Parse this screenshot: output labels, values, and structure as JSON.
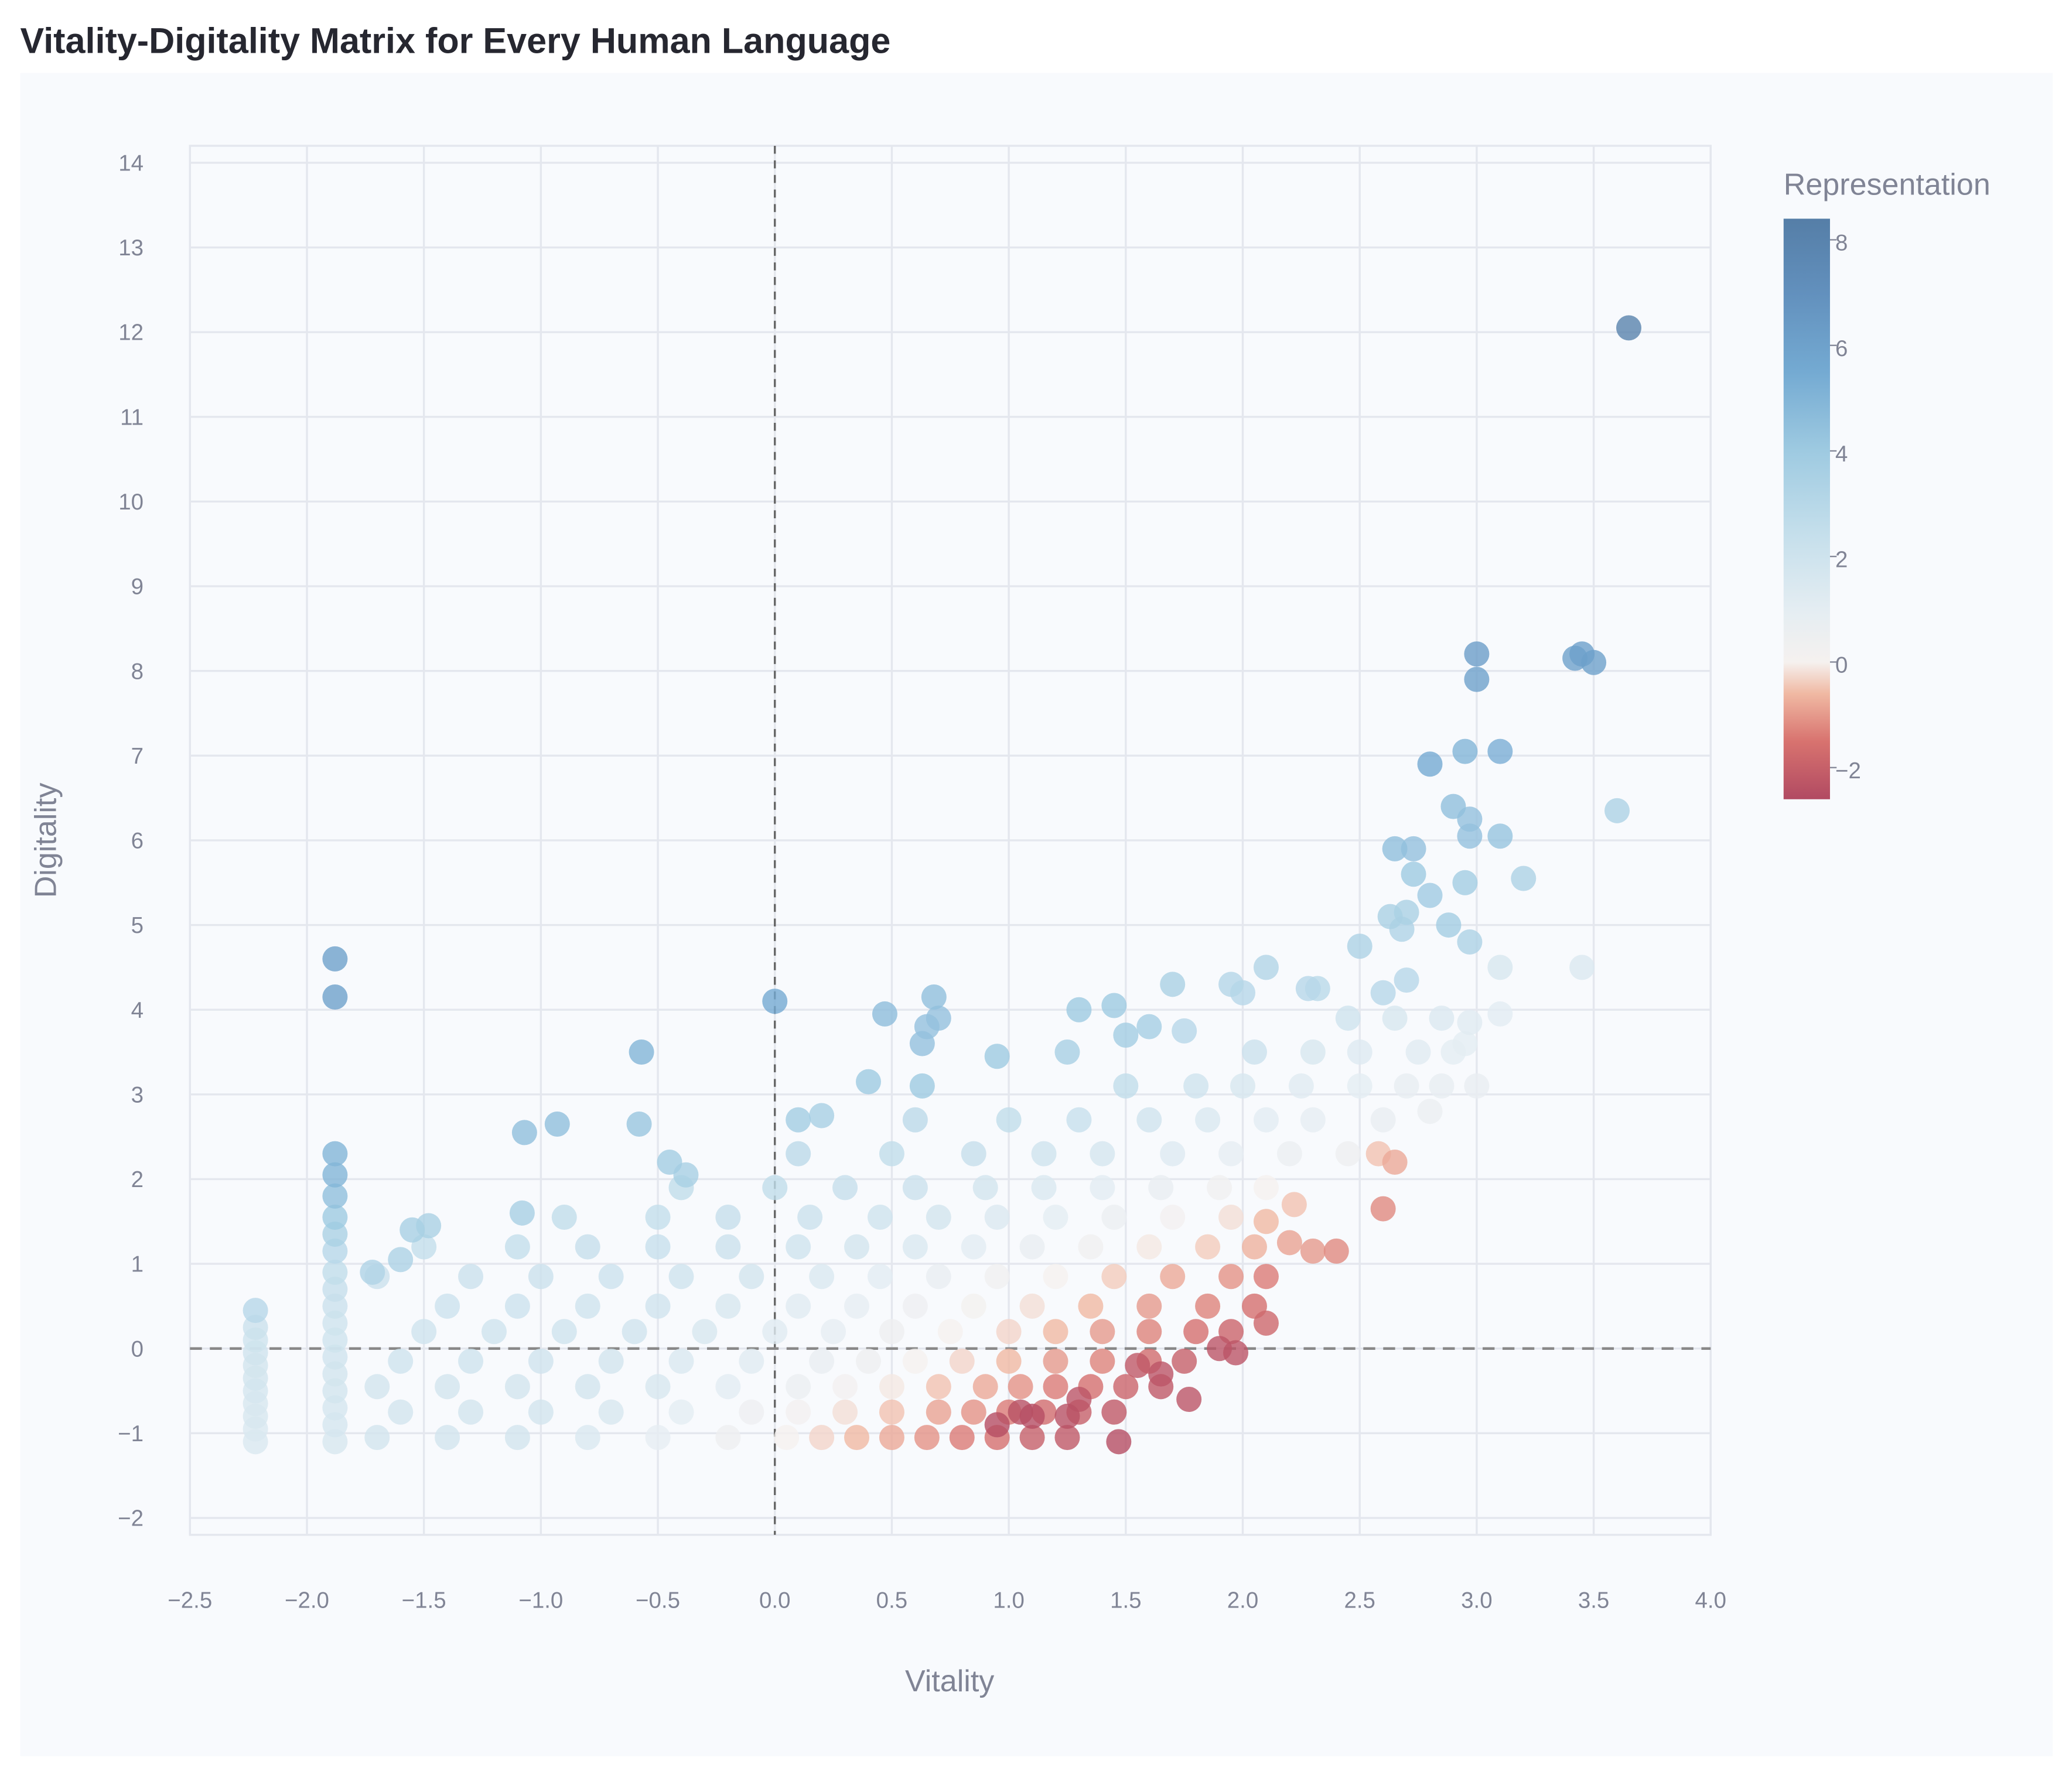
{
  "chart_data": {
    "type": "scatter",
    "title": "Vitality-Digitality Matrix for Every Human Language",
    "xlabel": "Vitality",
    "ylabel": "Digitality",
    "xlim": [
      -2.5,
      4.0
    ],
    "ylim": [
      -2.2,
      14.2
    ],
    "x_ticks": [
      "−2.5",
      "−2.0",
      "−1.5",
      "−1.0",
      "−0.5",
      "0.0",
      "0.5",
      "1.0",
      "1.5",
      "2.0",
      "2.5",
      "3.0",
      "3.5",
      "4.0"
    ],
    "x_tick_values": [
      -2.5,
      -2.0,
      -1.5,
      -1.0,
      -0.5,
      0.0,
      0.5,
      1.0,
      1.5,
      2.0,
      2.5,
      3.0,
      3.5,
      4.0
    ],
    "y_ticks": [
      "−2",
      "−1",
      "0",
      "1",
      "2",
      "3",
      "4",
      "5",
      "6",
      "7",
      "8",
      "9",
      "10",
      "11",
      "12",
      "13",
      "14"
    ],
    "y_tick_values": [
      -2,
      -1,
      0,
      1,
      2,
      3,
      4,
      5,
      6,
      7,
      8,
      9,
      10,
      11,
      12,
      13,
      14
    ],
    "grid": true,
    "reference_lines": {
      "x": 0,
      "y": 0,
      "style": "dashed"
    },
    "color_field": "Representation",
    "colorbar": {
      "title": "Representation",
      "range": [
        -2.6,
        8.4
      ],
      "ticks": [
        "8",
        "6",
        "4",
        "2",
        "0",
        "−2"
      ],
      "tick_values": [
        8,
        6,
        4,
        2,
        0,
        -2
      ],
      "placement": "right",
      "stops": [
        {
          "v": -2.6,
          "c": "#b14a62"
        },
        {
          "v": -1.5,
          "c": "#d8736f"
        },
        {
          "v": -0.6,
          "c": "#f0b9a3"
        },
        {
          "v": 0.0,
          "c": "#f5f1ef"
        },
        {
          "v": 1.0,
          "c": "#e4edf2"
        },
        {
          "v": 2.5,
          "c": "#c3deeb"
        },
        {
          "v": 4.0,
          "c": "#9ecae1"
        },
        {
          "v": 5.5,
          "c": "#74aad2"
        },
        {
          "v": 7.0,
          "c": "#6290bd"
        },
        {
          "v": 8.4,
          "c": "#557ea7"
        }
      ]
    },
    "points_format": [
      "vitality",
      "digitality",
      "representation"
    ],
    "points": [
      [
        3.65,
        12.05,
        8.0
      ],
      [
        3.0,
        8.2,
        6.2
      ],
      [
        3.0,
        7.9,
        6.0
      ],
      [
        3.42,
        8.15,
        6.0
      ],
      [
        3.45,
        8.2,
        6.1
      ],
      [
        3.5,
        8.1,
        6.0
      ],
      [
        2.8,
        6.9,
        5.5
      ],
      [
        2.95,
        7.05,
        5.0
      ],
      [
        3.1,
        7.05,
        5.3
      ],
      [
        2.9,
        6.4,
        4.5
      ],
      [
        2.97,
        6.25,
        4.4
      ],
      [
        2.97,
        6.05,
        4.4
      ],
      [
        3.1,
        6.05,
        4.3
      ],
      [
        3.6,
        6.35,
        3.4
      ],
      [
        3.2,
        5.55,
        3.4
      ],
      [
        2.65,
        5.9,
        4.5
      ],
      [
        2.73,
        5.9,
        4.4
      ],
      [
        2.73,
        5.6,
        4.0
      ],
      [
        2.8,
        5.35,
        3.9
      ],
      [
        2.88,
        5.0,
        3.8
      ],
      [
        2.95,
        5.5,
        3.8
      ],
      [
        2.97,
        4.8,
        3.4
      ],
      [
        2.63,
        5.1,
        3.5
      ],
      [
        2.7,
        5.15,
        3.5
      ],
      [
        2.68,
        4.95,
        3.3
      ],
      [
        2.5,
        4.75,
        3.4
      ],
      [
        2.6,
        4.2,
        3.0
      ],
      [
        2.7,
        4.35,
        3.0
      ],
      [
        2.1,
        4.5,
        3.2
      ],
      [
        1.95,
        4.3,
        3.1
      ],
      [
        2.0,
        4.2,
        3.0
      ],
      [
        2.28,
        4.25,
        3.0
      ],
      [
        2.32,
        4.25,
        2.9
      ],
      [
        1.7,
        4.3,
        3.5
      ],
      [
        1.75,
        3.75,
        3.0
      ],
      [
        3.1,
        4.5,
        1.6
      ],
      [
        3.45,
        4.5,
        1.4
      ],
      [
        3.1,
        3.95,
        1.1
      ],
      [
        2.97,
        3.85,
        1.2
      ],
      [
        2.95,
        3.6,
        1.0
      ],
      [
        2.8,
        2.8,
        0.6
      ],
      [
        -1.88,
        4.6,
        6.0
      ],
      [
        -1.88,
        4.15,
        6.0
      ],
      [
        0.0,
        4.1,
        5.5
      ],
      [
        -0.57,
        3.5,
        5.0
      ],
      [
        0.47,
        3.95,
        4.6
      ],
      [
        0.68,
        4.15,
        4.5
      ],
      [
        0.65,
        3.8,
        4.4
      ],
      [
        0.7,
        3.9,
        4.4
      ],
      [
        0.63,
        3.6,
        4.4
      ],
      [
        1.3,
        4.0,
        4.0
      ],
      [
        1.45,
        4.05,
        4.0
      ],
      [
        1.5,
        3.7,
        3.8
      ],
      [
        1.6,
        3.8,
        3.7
      ],
      [
        0.95,
        3.45,
        4.0
      ],
      [
        0.4,
        3.15,
        4.0
      ],
      [
        0.63,
        3.1,
        4.0
      ],
      [
        1.25,
        3.5,
        3.6
      ],
      [
        -0.58,
        2.65,
        4.2
      ],
      [
        -0.93,
        2.65,
        4.5
      ],
      [
        -1.07,
        2.55,
        4.5
      ],
      [
        0.1,
        2.7,
        3.8
      ],
      [
        0.2,
        2.75,
        3.6
      ],
      [
        -0.45,
        2.2,
        3.8
      ],
      [
        -0.38,
        2.05,
        3.6
      ],
      [
        -1.08,
        1.6,
        3.6
      ],
      [
        -1.55,
        1.4,
        3.6
      ],
      [
        -1.48,
        1.45,
        3.5
      ],
      [
        -1.6,
        1.05,
        3.4
      ],
      [
        -1.72,
        0.9,
        3.3
      ],
      [
        -1.88,
        2.3,
        5.0
      ],
      [
        -1.88,
        2.05,
        5.0
      ],
      [
        -1.88,
        1.8,
        4.5
      ],
      [
        -1.88,
        1.55,
        4.0
      ],
      [
        -1.88,
        1.35,
        3.5
      ],
      [
        -1.88,
        1.15,
        3.0
      ],
      [
        -1.88,
        0.9,
        2.6
      ],
      [
        -1.88,
        0.7,
        2.4
      ],
      [
        -1.88,
        0.5,
        2.2
      ],
      [
        -1.88,
        0.3,
        2.0
      ],
      [
        -1.88,
        0.1,
        2.0
      ],
      [
        -1.88,
        -0.1,
        1.9
      ],
      [
        -1.88,
        -0.3,
        1.8
      ],
      [
        -1.88,
        -0.5,
        1.8
      ],
      [
        -1.88,
        -0.7,
        1.7
      ],
      [
        -1.88,
        -0.9,
        1.7
      ],
      [
        -1.88,
        -1.1,
        1.6
      ],
      [
        -2.22,
        0.45,
        3.0
      ],
      [
        -2.22,
        0.25,
        2.2
      ],
      [
        -2.22,
        0.1,
        2.0
      ],
      [
        -2.22,
        -0.05,
        1.9
      ],
      [
        -2.22,
        -0.2,
        1.8
      ],
      [
        -2.22,
        -0.35,
        1.8
      ],
      [
        -2.22,
        -0.5,
        1.7
      ],
      [
        -2.22,
        -0.65,
        1.6
      ],
      [
        -2.22,
        -0.8,
        1.6
      ],
      [
        -2.22,
        -0.95,
        1.5
      ],
      [
        -2.22,
        -1.1,
        1.5
      ],
      [
        1.47,
        -1.1,
        -2.5
      ],
      [
        1.77,
        -0.6,
        -2.3
      ],
      [
        1.97,
        -0.05,
        -2.3
      ],
      [
        1.9,
        0.0,
        -2.3
      ],
      [
        2.1,
        0.3,
        -1.8
      ],
      [
        2.4,
        1.15,
        -1.2
      ],
      [
        2.3,
        1.15,
        -1.0
      ],
      [
        2.6,
        1.65,
        -1.2
      ],
      [
        2.65,
        2.2,
        -0.8
      ],
      [
        2.58,
        2.3,
        -0.5
      ],
      [
        2.22,
        1.7,
        -0.5
      ],
      [
        2.1,
        1.5,
        -0.6
      ],
      [
        2.2,
        1.25,
        -0.9
      ],
      [
        1.3,
        -0.6,
        -2.3
      ],
      [
        1.1,
        -0.8,
        -2.5
      ],
      [
        0.95,
        -0.9,
        -2.5
      ],
      [
        1.25,
        -0.8,
        -2.4
      ],
      [
        1.05,
        -0.75,
        -2.4
      ],
      [
        1.65,
        -0.3,
        -2.3
      ],
      [
        1.55,
        -0.2,
        -2.2
      ],
      [
        -1.7,
        -1.05,
        1.8
      ],
      [
        -1.4,
        -1.05,
        1.8
      ],
      [
        -1.1,
        -1.05,
        1.8
      ],
      [
        -0.8,
        -1.05,
        1.5
      ],
      [
        -0.5,
        -1.05,
        0.9
      ],
      [
        -0.2,
        -1.05,
        0.4
      ],
      [
        0.05,
        -1.05,
        0.0
      ],
      [
        0.2,
        -1.05,
        -0.3
      ],
      [
        0.35,
        -1.05,
        -0.6
      ],
      [
        0.5,
        -1.05,
        -0.8
      ],
      [
        0.65,
        -1.05,
        -1.1
      ],
      [
        0.8,
        -1.05,
        -1.4
      ],
      [
        0.95,
        -1.05,
        -1.6
      ],
      [
        1.1,
        -1.05,
        -2.0
      ],
      [
        1.25,
        -1.05,
        -2.2
      ],
      [
        -1.6,
        -0.75,
        1.8
      ],
      [
        -1.3,
        -0.75,
        1.8
      ],
      [
        -1.0,
        -0.75,
        1.8
      ],
      [
        -0.7,
        -0.75,
        1.6
      ],
      [
        -0.4,
        -0.75,
        1.0
      ],
      [
        -0.1,
        -0.75,
        0.5
      ],
      [
        0.1,
        -0.75,
        0.2
      ],
      [
        0.3,
        -0.75,
        -0.2
      ],
      [
        0.5,
        -0.75,
        -0.5
      ],
      [
        0.7,
        -0.75,
        -0.9
      ],
      [
        0.85,
        -0.75,
        -1.1
      ],
      [
        1.0,
        -0.75,
        -1.4
      ],
      [
        1.15,
        -0.75,
        -1.7
      ],
      [
        1.3,
        -0.75,
        -2.0
      ],
      [
        1.45,
        -0.75,
        -2.2
      ],
      [
        -1.7,
        -0.45,
        1.8
      ],
      [
        -1.4,
        -0.45,
        1.8
      ],
      [
        -1.1,
        -0.45,
        1.8
      ],
      [
        -0.8,
        -0.45,
        1.8
      ],
      [
        -0.5,
        -0.45,
        1.6
      ],
      [
        -0.2,
        -0.45,
        1.1
      ],
      [
        0.1,
        -0.45,
        0.6
      ],
      [
        0.3,
        -0.45,
        0.2
      ],
      [
        0.5,
        -0.45,
        -0.1
      ],
      [
        0.7,
        -0.45,
        -0.5
      ],
      [
        0.9,
        -0.45,
        -0.8
      ],
      [
        1.05,
        -0.45,
        -1.1
      ],
      [
        1.2,
        -0.45,
        -1.4
      ],
      [
        1.35,
        -0.45,
        -1.6
      ],
      [
        1.5,
        -0.45,
        -1.9
      ],
      [
        1.65,
        -0.45,
        -2.2
      ],
      [
        -1.6,
        -0.15,
        2.0
      ],
      [
        -1.3,
        -0.15,
        2.0
      ],
      [
        -1.0,
        -0.15,
        1.9
      ],
      [
        -0.7,
        -0.15,
        1.8
      ],
      [
        -0.4,
        -0.15,
        1.5
      ],
      [
        -0.1,
        -0.15,
        1.2
      ],
      [
        0.2,
        -0.15,
        0.7
      ],
      [
        0.4,
        -0.15,
        0.4
      ],
      [
        0.6,
        -0.15,
        0.0
      ],
      [
        0.8,
        -0.15,
        -0.3
      ],
      [
        1.0,
        -0.15,
        -0.6
      ],
      [
        1.2,
        -0.15,
        -1.0
      ],
      [
        1.4,
        -0.15,
        -1.3
      ],
      [
        1.6,
        -0.15,
        -1.7
      ],
      [
        1.75,
        -0.15,
        -2.0
      ],
      [
        -1.5,
        0.2,
        2.0
      ],
      [
        -1.2,
        0.2,
        2.0
      ],
      [
        -0.9,
        0.2,
        2.0
      ],
      [
        -0.6,
        0.2,
        1.9
      ],
      [
        -0.3,
        0.2,
        1.6
      ],
      [
        0.0,
        0.2,
        1.2
      ],
      [
        0.25,
        0.2,
        0.9
      ],
      [
        0.5,
        0.2,
        0.4
      ],
      [
        0.75,
        0.2,
        0.0
      ],
      [
        1.0,
        0.2,
        -0.3
      ],
      [
        1.2,
        0.2,
        -0.6
      ],
      [
        1.4,
        0.2,
        -1.0
      ],
      [
        1.6,
        0.2,
        -1.3
      ],
      [
        1.8,
        0.2,
        -1.6
      ],
      [
        1.95,
        0.2,
        -1.9
      ],
      [
        -1.4,
        0.5,
        2.1
      ],
      [
        -1.1,
        0.5,
        2.1
      ],
      [
        -0.8,
        0.5,
        2.0
      ],
      [
        -0.5,
        0.5,
        1.9
      ],
      [
        -0.2,
        0.5,
        1.6
      ],
      [
        0.1,
        0.5,
        1.2
      ],
      [
        0.35,
        0.5,
        0.9
      ],
      [
        0.6,
        0.5,
        0.5
      ],
      [
        0.85,
        0.5,
        0.1
      ],
      [
        1.1,
        0.5,
        -0.2
      ],
      [
        1.35,
        0.5,
        -0.6
      ],
      [
        1.6,
        0.5,
        -1.0
      ],
      [
        1.85,
        0.5,
        -1.3
      ],
      [
        2.05,
        0.5,
        -1.6
      ],
      [
        -1.7,
        0.85,
        2.2
      ],
      [
        -1.3,
        0.85,
        2.2
      ],
      [
        -1.0,
        0.85,
        2.2
      ],
      [
        -0.7,
        0.85,
        2.1
      ],
      [
        -0.4,
        0.85,
        2.0
      ],
      [
        -0.1,
        0.85,
        1.8
      ],
      [
        0.2,
        0.85,
        1.5
      ],
      [
        0.45,
        0.85,
        1.1
      ],
      [
        0.7,
        0.85,
        0.7
      ],
      [
        0.95,
        0.85,
        0.3
      ],
      [
        1.2,
        0.85,
        0.0
      ],
      [
        1.45,
        0.85,
        -0.4
      ],
      [
        1.7,
        0.85,
        -0.8
      ],
      [
        1.95,
        0.85,
        -1.1
      ],
      [
        2.1,
        0.85,
        -1.4
      ],
      [
        -1.5,
        1.2,
        2.5
      ],
      [
        -1.1,
        1.2,
        2.5
      ],
      [
        -0.8,
        1.2,
        2.4
      ],
      [
        -0.5,
        1.2,
        2.3
      ],
      [
        -0.2,
        1.2,
        2.2
      ],
      [
        0.1,
        1.2,
        2.0
      ],
      [
        0.35,
        1.2,
        1.8
      ],
      [
        0.6,
        1.2,
        1.5
      ],
      [
        0.85,
        1.2,
        1.1
      ],
      [
        1.1,
        1.2,
        0.7
      ],
      [
        1.35,
        1.2,
        0.3
      ],
      [
        1.6,
        1.2,
        -0.1
      ],
      [
        1.85,
        1.2,
        -0.4
      ],
      [
        2.05,
        1.2,
        -0.7
      ],
      [
        -0.9,
        1.55,
        2.6
      ],
      [
        -0.5,
        1.55,
        2.5
      ],
      [
        -0.2,
        1.55,
        2.4
      ],
      [
        0.15,
        1.55,
        2.2
      ],
      [
        0.45,
        1.55,
        2.0
      ],
      [
        0.7,
        1.55,
        1.8
      ],
      [
        0.95,
        1.55,
        1.4
      ],
      [
        1.2,
        1.55,
        1.0
      ],
      [
        1.45,
        1.55,
        0.6
      ],
      [
        1.7,
        1.55,
        0.2
      ],
      [
        1.95,
        1.55,
        -0.2
      ],
      [
        -0.4,
        1.9,
        2.6
      ],
      [
        0.0,
        1.9,
        2.6
      ],
      [
        0.3,
        1.9,
        2.4
      ],
      [
        0.6,
        1.9,
        2.2
      ],
      [
        0.9,
        1.9,
        1.8
      ],
      [
        1.15,
        1.9,
        1.5
      ],
      [
        1.4,
        1.9,
        1.1
      ],
      [
        1.65,
        1.9,
        0.7
      ],
      [
        1.9,
        1.9,
        0.3
      ],
      [
        2.1,
        1.9,
        0.0
      ],
      [
        0.1,
        2.3,
        2.8
      ],
      [
        0.5,
        2.3,
        2.6
      ],
      [
        0.85,
        2.3,
        2.4
      ],
      [
        1.15,
        2.3,
        2.0
      ],
      [
        1.4,
        2.3,
        1.7
      ],
      [
        1.7,
        2.3,
        1.3
      ],
      [
        1.95,
        2.3,
        0.9
      ],
      [
        2.2,
        2.3,
        0.6
      ],
      [
        2.45,
        2.3,
        0.4
      ],
      [
        0.6,
        2.7,
        2.8
      ],
      [
        1.0,
        2.7,
        2.6
      ],
      [
        1.3,
        2.7,
        2.3
      ],
      [
        1.6,
        2.7,
        1.9
      ],
      [
        1.85,
        2.7,
        1.5
      ],
      [
        2.1,
        2.7,
        1.1
      ],
      [
        2.3,
        2.7,
        0.9
      ],
      [
        2.6,
        2.7,
        0.7
      ],
      [
        1.5,
        3.1,
        2.6
      ],
      [
        1.8,
        3.1,
        2.0
      ],
      [
        2.0,
        3.1,
        1.6
      ],
      [
        2.25,
        3.1,
        1.2
      ],
      [
        2.5,
        3.1,
        1.0
      ],
      [
        2.7,
        3.1,
        0.8
      ],
      [
        2.85,
        3.1,
        0.8
      ],
      [
        3.0,
        3.1,
        0.7
      ],
      [
        2.05,
        3.5,
        2.2
      ],
      [
        2.3,
        3.5,
        1.6
      ],
      [
        2.5,
        3.5,
        1.3
      ],
      [
        2.75,
        3.5,
        1.2
      ],
      [
        2.9,
        3.5,
        1.0
      ],
      [
        2.45,
        3.9,
        2.0
      ],
      [
        2.65,
        3.9,
        1.6
      ],
      [
        2.85,
        3.9,
        1.4
      ]
    ]
  }
}
